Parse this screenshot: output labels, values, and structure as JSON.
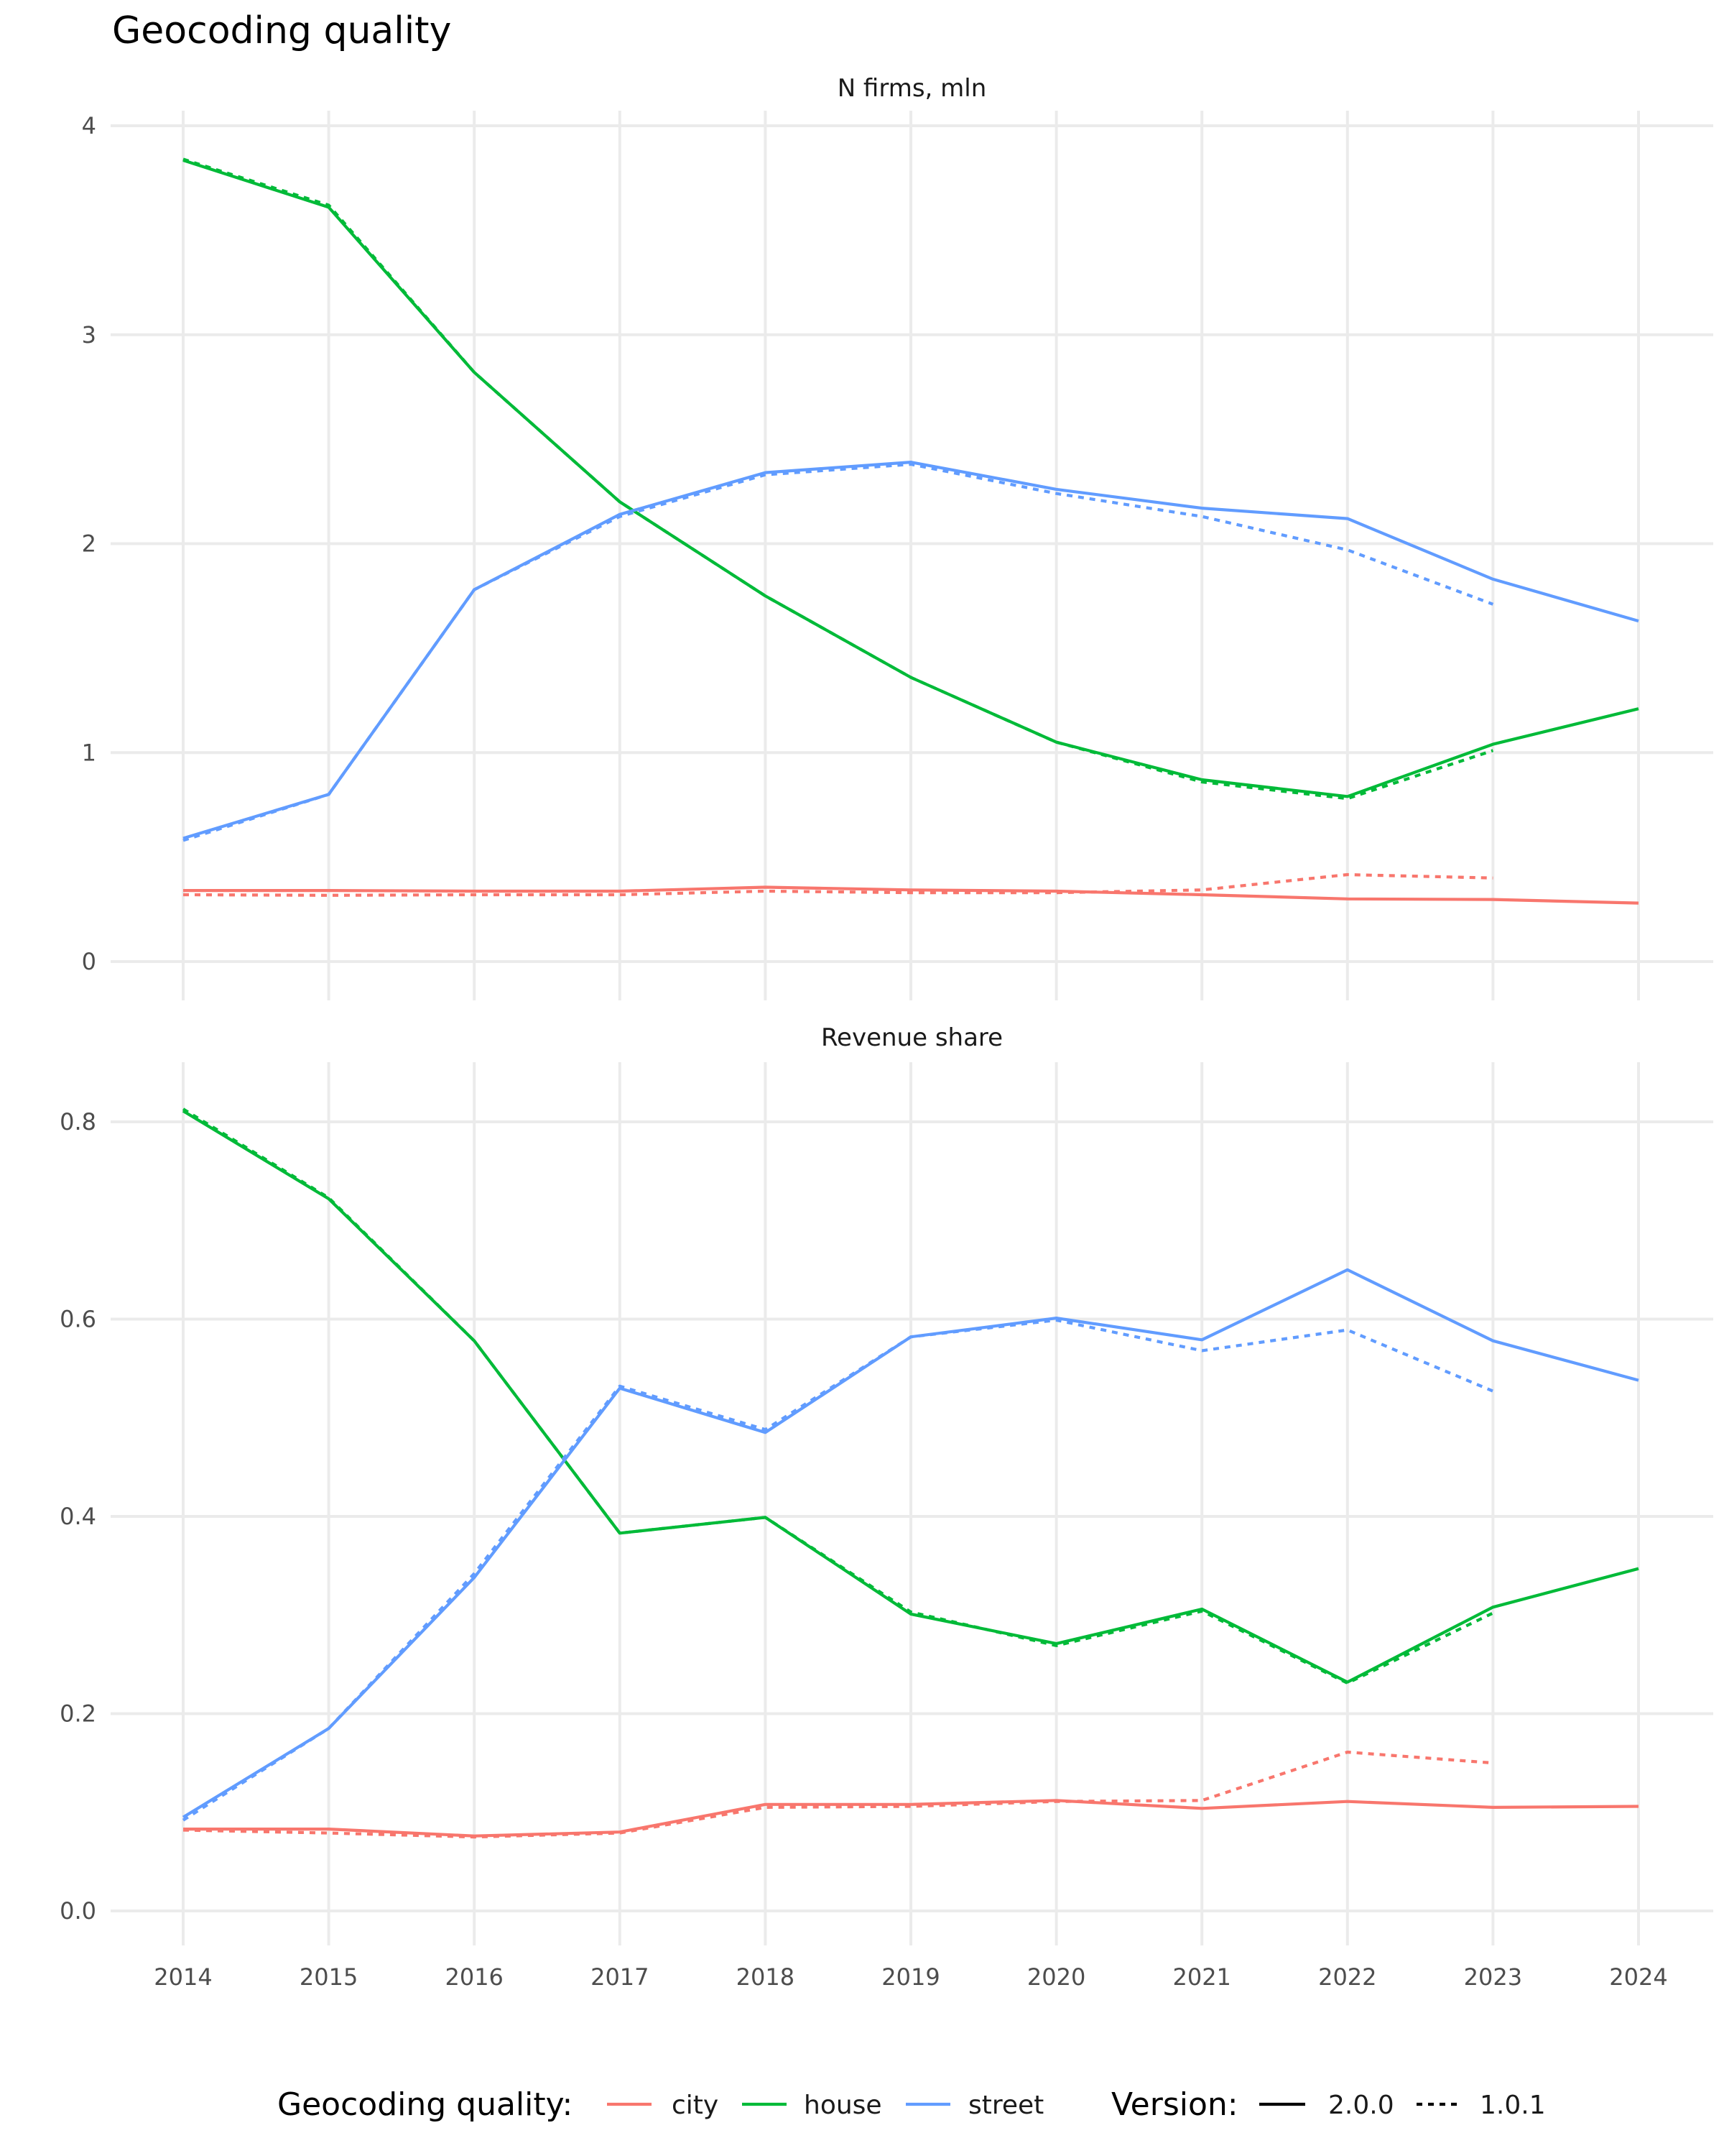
{
  "chart_data": {
    "type": "line",
    "title": "Geocoding quality",
    "x": [
      2014,
      2015,
      2016,
      2017,
      2018,
      2019,
      2020,
      2021,
      2022,
      2023,
      2024
    ],
    "x_tick_labels": [
      "2014",
      "2015",
      "2016",
      "2017",
      "2018",
      "2019",
      "2020",
      "2021",
      "2022",
      "2023",
      "2024"
    ],
    "grid": true,
    "legend_position": "bottom",
    "legend": {
      "color_title": "Geocoding quality:",
      "color_entries": [
        {
          "name": "city",
          "color": "#F8766D"
        },
        {
          "name": "house",
          "color": "#00BA38"
        },
        {
          "name": "street",
          "color": "#619CFF"
        }
      ],
      "linetype_title": "Version:",
      "linetype_entries": [
        {
          "name": "2.0.0",
          "linetype": "solid"
        },
        {
          "name": "1.0.1",
          "linetype": "dashed"
        }
      ]
    },
    "panels": [
      {
        "strip": "N firms, mln",
        "ylim": [
          -0.15,
          4.1
        ],
        "y_ticks": [
          0,
          1,
          2,
          3,
          4
        ],
        "y_tick_labels": [
          "0",
          "1",
          "2",
          "3",
          "4"
        ],
        "series": [
          {
            "quality": "city",
            "version": "2.0.0",
            "values": [
              0.34,
              0.34,
              0.337,
              0.337,
              0.356,
              0.343,
              0.337,
              0.32,
              0.3,
              0.297,
              0.28
            ]
          },
          {
            "quality": "city",
            "version": "1.0.1",
            "values": [
              0.32,
              0.317,
              0.32,
              0.32,
              0.337,
              0.33,
              0.33,
              0.343,
              0.416,
              0.4,
              null
            ]
          },
          {
            "quality": "house",
            "version": "2.0.0",
            "values": [
              3.835,
              3.61,
              2.82,
              2.2,
              1.75,
              1.36,
              1.05,
              0.87,
              0.79,
              1.04,
              1.21
            ]
          },
          {
            "quality": "house",
            "version": "1.0.1",
            "values": [
              3.84,
              3.62,
              2.82,
              2.2,
              1.75,
              1.36,
              1.05,
              0.86,
              0.78,
              1.01,
              null
            ]
          },
          {
            "quality": "street",
            "version": "2.0.0",
            "values": [
              0.59,
              0.8,
              1.78,
              2.14,
              2.34,
              2.39,
              2.26,
              2.17,
              2.12,
              1.83,
              1.63
            ]
          },
          {
            "quality": "street",
            "version": "1.0.1",
            "values": [
              0.58,
              0.8,
              1.78,
              2.13,
              2.33,
              2.38,
              2.24,
              2.13,
              1.97,
              1.71,
              null
            ]
          }
        ]
      },
      {
        "strip": "Revenue share",
        "ylim": [
          -0.03,
          0.85
        ],
        "y_ticks": [
          0,
          0.2,
          0.4,
          0.6,
          0.8
        ],
        "y_tick_labels": [
          "0.0",
          "0.2",
          "0.4",
          "0.6",
          "0.8"
        ],
        "series": [
          {
            "quality": "city",
            "version": "2.0.0",
            "values": [
              0.083,
              0.083,
              0.076,
              0.08,
              0.108,
              0.108,
              0.112,
              0.104,
              0.111,
              0.105,
              0.106
            ]
          },
          {
            "quality": "city",
            "version": "1.0.1",
            "values": [
              0.082,
              0.079,
              0.075,
              0.079,
              0.105,
              0.106,
              0.111,
              0.112,
              0.161,
              0.15,
              null
            ]
          },
          {
            "quality": "house",
            "version": "2.0.0",
            "values": [
              0.811,
              0.722,
              0.578,
              0.383,
              0.399,
              0.301,
              0.271,
              0.306,
              0.232,
              0.308,
              0.347
            ]
          },
          {
            "quality": "house",
            "version": "1.0.1",
            "values": [
              0.813,
              0.723,
              0.578,
              0.383,
              0.399,
              0.303,
              0.269,
              0.304,
              0.231,
              0.302,
              null
            ]
          },
          {
            "quality": "street",
            "version": "2.0.0",
            "values": [
              0.095,
              0.185,
              0.338,
              0.53,
              0.485,
              0.582,
              0.601,
              0.579,
              0.65,
              0.578,
              0.538
            ]
          },
          {
            "quality": "street",
            "version": "1.0.1",
            "values": [
              0.092,
              0.185,
              0.342,
              0.532,
              0.488,
              0.582,
              0.599,
              0.568,
              0.589,
              0.527,
              null
            ]
          }
        ]
      }
    ]
  }
}
